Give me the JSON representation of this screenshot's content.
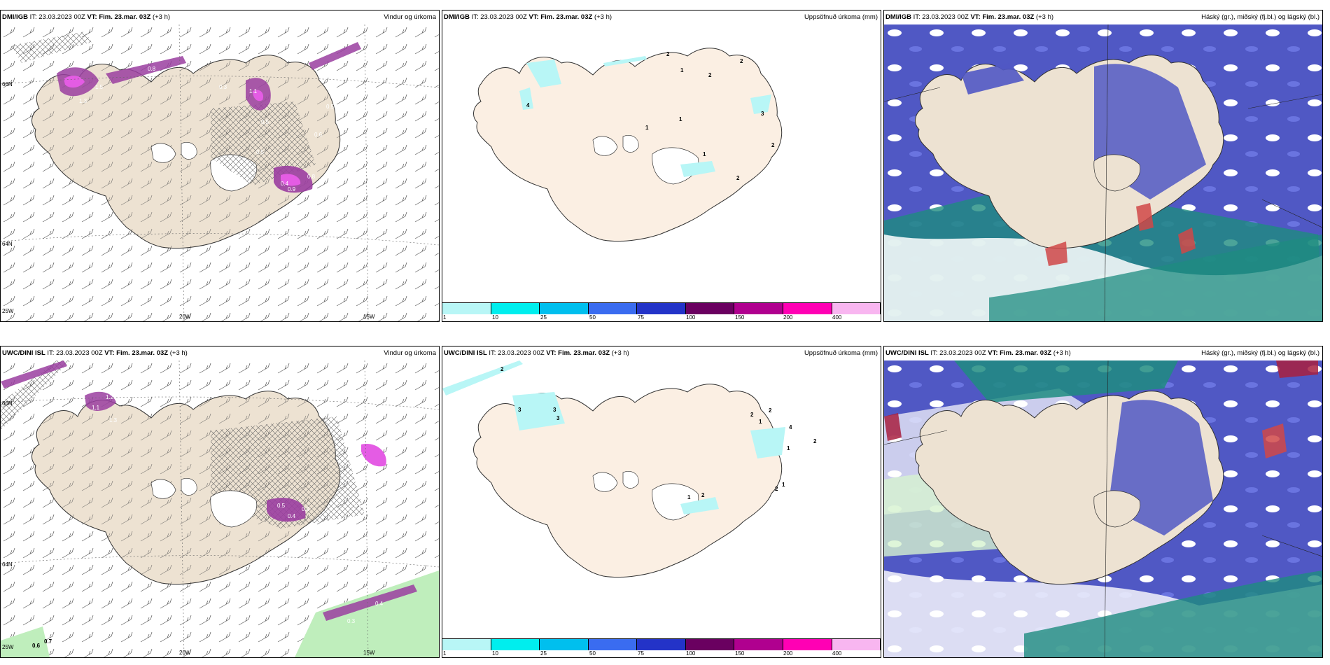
{
  "panels": [
    {
      "model": "DMI/IGB",
      "it_label": "IT:",
      "it": "23.03.2023 00Z",
      "vt_label": "VT:",
      "vt": "Fim. 23.mar. 03Z",
      "lead": "(+3 h)",
      "title": "Vindur og úrkoma"
    },
    {
      "model": "DMI/IGB",
      "it_label": "IT:",
      "it": "23.03.2023 00Z",
      "vt_label": "VT:",
      "vt": "Fim. 23.mar. 03Z",
      "lead": "(+3 h)",
      "title": "Uppsöfnuð úrkoma (mm)"
    },
    {
      "model": "DMI/IGB",
      "it_label": "IT:",
      "it": "23.03.2023 00Z",
      "vt_label": "VT:",
      "vt": "Fim. 23.mar. 03Z",
      "lead": "(+3 h)",
      "title": "Háský (gr.), miðský (fj.bl.) og lágský (bl.)"
    },
    {
      "model": "UWC/DINI ISL",
      "it_label": "IT:",
      "it": "23.03.2023 00Z",
      "vt_label": "VT:",
      "vt": "Fim. 23.mar. 03Z",
      "lead": "(+3 h)",
      "title": "Vindur og úrkoma"
    },
    {
      "model": "UWC/DINI ISL",
      "it_label": "IT:",
      "it": "23.03.2023 00Z",
      "vt_label": "VT:",
      "vt": "Fim. 23.mar. 03Z",
      "lead": "(+3 h)",
      "title": "Uppsöfnuð úrkoma (mm)"
    },
    {
      "model": "UWC/DINI ISL",
      "it_label": "IT:",
      "it": "23.03.2023 00Z",
      "vt_label": "VT:",
      "vt": "Fim. 23.mar. 03Z",
      "lead": "(+3 h)",
      "title": "Háský (gr.), miðský (fj.bl.) og lágský (bl.)"
    }
  ],
  "axis_labels": {
    "lon_20w": "20W",
    "lon_15w": "15W",
    "lon_25w": "25W",
    "lat_66n": "66N",
    "lat_64n": "64N"
  },
  "colorbar": {
    "labels": [
      "1",
      "10",
      "25",
      "50",
      "75",
      "100",
      "150",
      "200",
      "400"
    ],
    "colors": [
      "#b8f6f6",
      "#00eeee",
      "#00bfee",
      "#3a6cf0",
      "#2333c8",
      "#6a0060",
      "#b0008f",
      "#ff00b4",
      "#f8b6f0"
    ]
  },
  "wind_precip_labels_top": [
    "1.6",
    "1.5",
    "1.3",
    "0.8",
    "0.5",
    "0.4",
    "0.5",
    "0.9",
    "0.8",
    "0.6",
    "0.5",
    "1.1",
    "0.3"
  ],
  "wind_precip_labels_bottom": [
    "1.2",
    "1.1",
    "1.3",
    "0.5",
    "0.4",
    "0.9",
    "0.7",
    "0.6",
    "0.4",
    "0.3",
    "0.6",
    "0.7"
  ],
  "accum_labels_top": [
    "2",
    "1",
    "4",
    "2",
    "1",
    "2",
    "1",
    "3",
    "2",
    "1",
    "2"
  ],
  "accum_labels_bottom": [
    "2",
    "3",
    "3",
    "3",
    "2",
    "2",
    "1",
    "4",
    "2",
    "1",
    "2",
    "1",
    "2",
    "1"
  ],
  "colors": {
    "land": "#ede2d2",
    "land_light": "#fbefe3",
    "purple": "#9a3ea0",
    "magenta": "#e45ce4",
    "blue_cloud": "#5058c4",
    "teal_cloud": "#1e8c80",
    "red": "#d04848"
  }
}
